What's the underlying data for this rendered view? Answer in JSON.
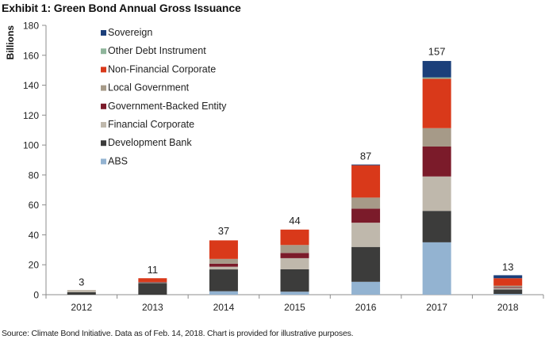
{
  "title": "Exhibit 1: Green Bond Annual Gross Issuance",
  "source": "Source: Climate Bond Initiative. Data as of Feb. 14, 2018. Chart is provided for illustrative purposes.",
  "chart_data": {
    "type": "bar",
    "stacked": true,
    "title": "Exhibit 1: Green Bond Annual Gross Issuance",
    "xlabel": "",
    "ylabel": "Billions",
    "ylim": [
      0,
      180
    ],
    "yticks": [
      0,
      20,
      40,
      60,
      80,
      100,
      120,
      140,
      160,
      180
    ],
    "grid": false,
    "legend_position": "top-left",
    "categories": [
      "2012",
      "2013",
      "2014",
      "2015",
      "2016",
      "2017",
      "2018"
    ],
    "totals": [
      3,
      11,
      37,
      44,
      87,
      157,
      13
    ],
    "total_labels": [
      "3",
      "11",
      "37",
      "44",
      "87",
      "157",
      "13"
    ],
    "series": [
      {
        "name": "ABS",
        "color": "#93b3d1",
        "values": [
          0,
          0,
          2.3,
          2,
          8.6,
          35,
          0.5
        ]
      },
      {
        "name": "Development Bank",
        "color": "#3c3c3b",
        "values": [
          1.7,
          7.8,
          14.6,
          15,
          23.3,
          21,
          3
        ]
      },
      {
        "name": "Financial Corporate",
        "color": "#bfb8ac",
        "values": [
          0.8,
          0.4,
          1.8,
          7.4,
          16.2,
          23,
          1
        ]
      },
      {
        "name": "Government-Backed Entity",
        "color": "#7b1b2a",
        "values": [
          0,
          0.3,
          2,
          3.5,
          9.4,
          20,
          0.5
        ]
      },
      {
        "name": "Local Government",
        "color": "#a69a88",
        "values": [
          0.5,
          0,
          3.2,
          5.3,
          7.4,
          12.3,
          1
        ]
      },
      {
        "name": "Non-Financial Corporate",
        "color": "#d9391a",
        "values": [
          0,
          2.5,
          12.4,
          10.3,
          21.6,
          33,
          5
        ]
      },
      {
        "name": "Other Debt Instrument",
        "color": "#8fb59b",
        "values": [
          0,
          0,
          0,
          0,
          0,
          0.9,
          0
        ]
      },
      {
        "name": "Sovereign",
        "color": "#1b3f7a",
        "values": [
          0,
          0,
          0,
          0,
          0.5,
          11,
          2
        ]
      }
    ]
  }
}
